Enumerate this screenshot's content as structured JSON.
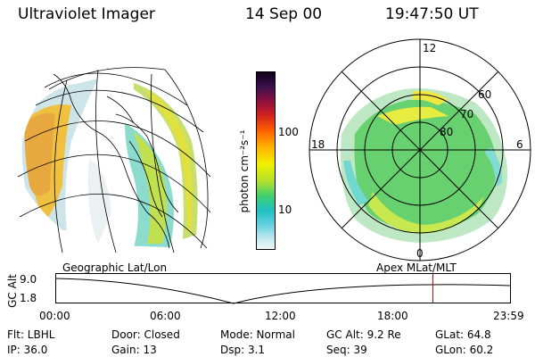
{
  "header": {
    "instrument": "Ultraviolet Imager",
    "date": "14 Sep 00",
    "time": "19:47:50 UT"
  },
  "colorbar": {
    "unit_label": "photon cm⁻²s⁻¹",
    "ticks": [
      "100",
      "10"
    ]
  },
  "polar_plot": {
    "mlt_labels": [
      "12",
      "18",
      "6",
      "0"
    ],
    "lat_labels": [
      "60",
      "70",
      "80"
    ]
  },
  "timeline": {
    "ylabel": "GC Alt",
    "left_title": "Geographic Lat/Lon",
    "right_title": "Apex  MLat/MLT",
    "y_ticks": [
      "9.0",
      "1.8"
    ],
    "x_ticks": [
      "00:00",
      "06:00",
      "12:00",
      "18:00",
      "23:59"
    ],
    "current_marker_fraction": 0.83
  },
  "status": {
    "row1": {
      "flt": "Flt: LBHL",
      "door": "Door: Closed",
      "mode": "Mode: Normal",
      "gcalt": "GC Alt: 9.2 Re",
      "glat": "GLat:  64.8"
    },
    "row2": {
      "ip": "IP: 36.0",
      "gain": "Gain: 13",
      "dsp": "Dsp:     3.1",
      "seq": "Seq: 39",
      "glon": "GLon:  60.2"
    }
  },
  "colors": {
    "marker": "#d00000",
    "grid": "#000000"
  }
}
